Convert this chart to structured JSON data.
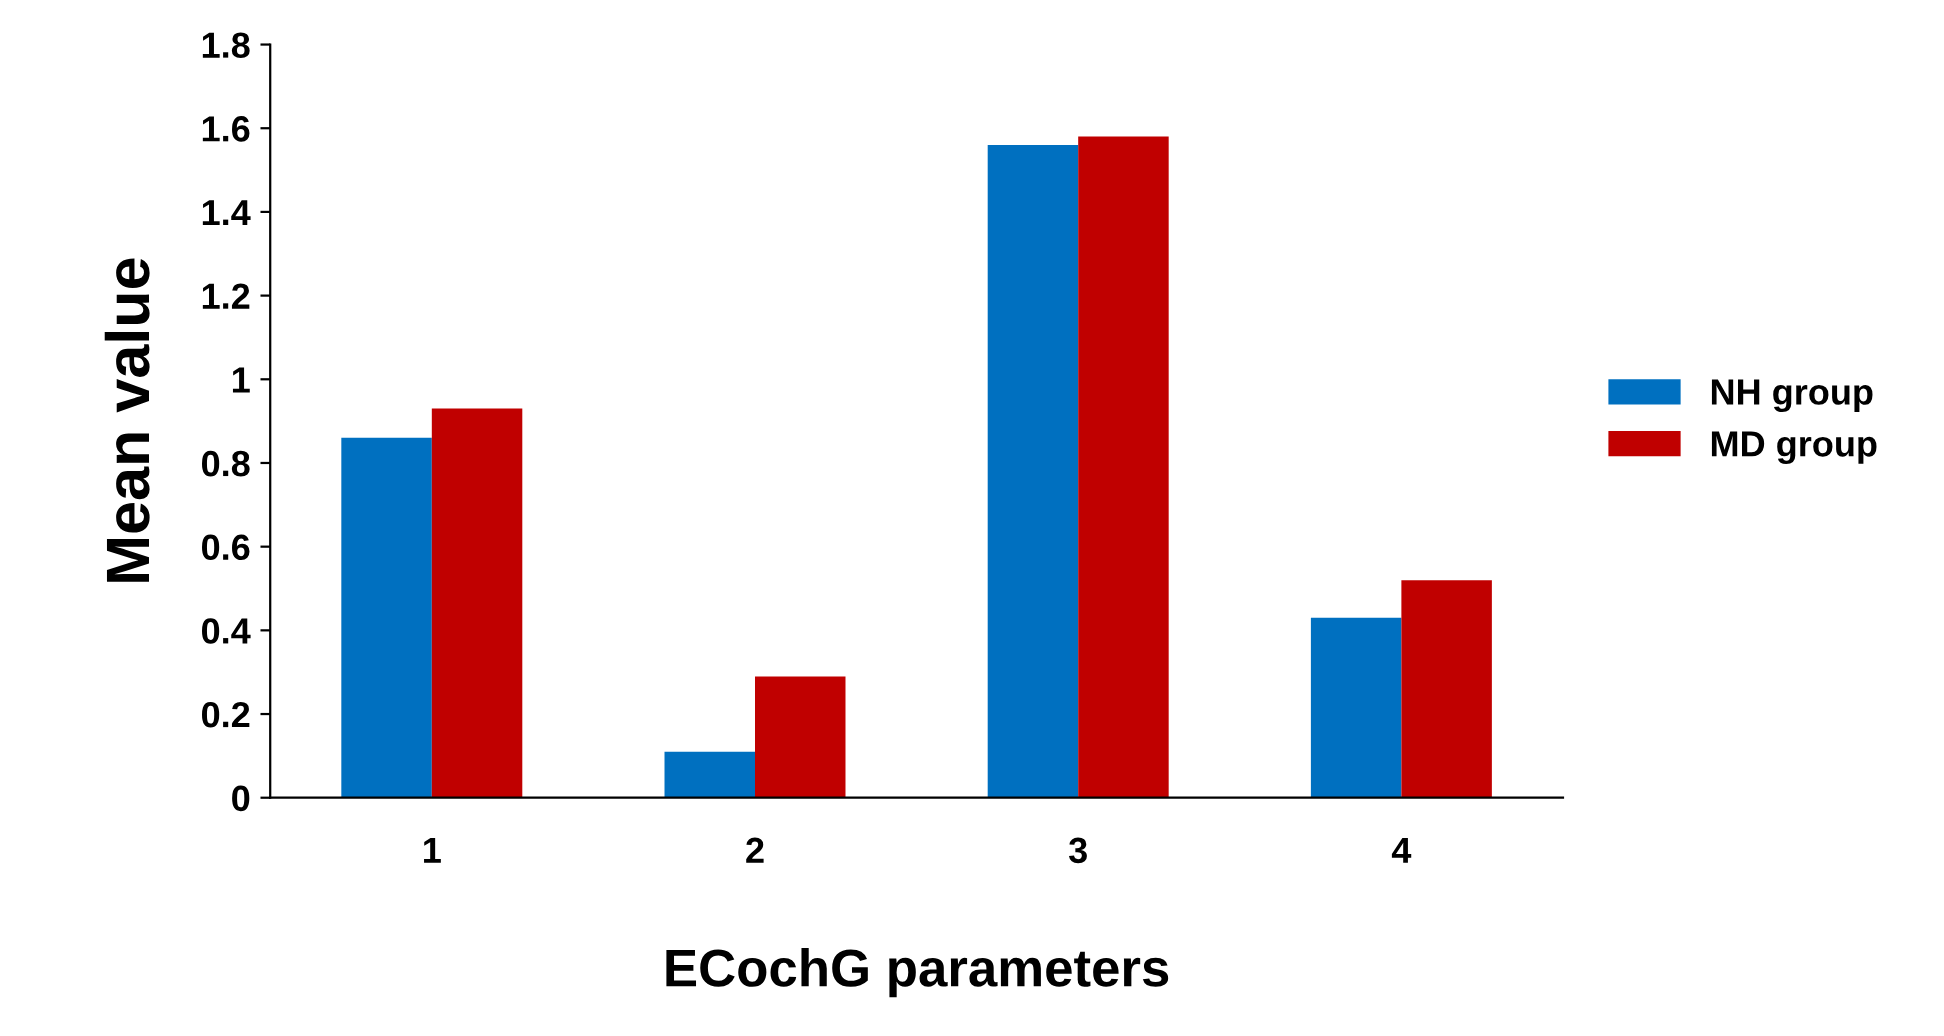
{
  "chart_data": {
    "type": "bar",
    "xlabel": "ECochG parameters",
    "ylabel": "Mean value",
    "categories": [
      "1",
      "2",
      "3",
      "4"
    ],
    "series": [
      {
        "name": "NH group",
        "color": "#0070c0",
        "values": [
          0.86,
          0.11,
          1.56,
          0.43
        ]
      },
      {
        "name": "MD group",
        "color": "#c00000",
        "values": [
          0.93,
          0.29,
          1.58,
          0.52
        ]
      }
    ],
    "ylim": [
      0,
      1.8
    ],
    "yticks": [
      0,
      {
        "value": 0.2,
        "label": "0.2"
      },
      {
        "value": 0.4,
        "label": "0.4"
      },
      {
        "value": 0.6,
        "label": "0.6"
      },
      {
        "value": 0.8,
        "label": "0.8"
      },
      1,
      {
        "value": 1.2,
        "label": "1.2"
      },
      {
        "value": 1.4,
        "label": "1.4"
      },
      {
        "value": 1.6,
        "label": "1.6"
      },
      {
        "value": 1.8,
        "label": "1.8"
      }
    ],
    "grid": false,
    "legend": "right"
  }
}
